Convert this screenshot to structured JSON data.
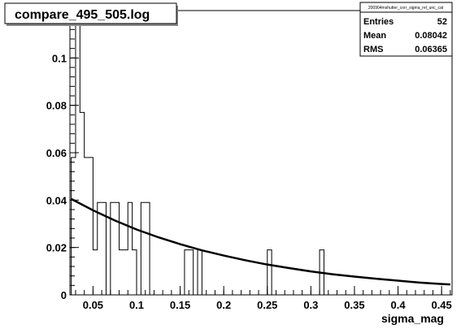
{
  "chart_data": {
    "type": "bar",
    "title": "compare_495_505.log",
    "xlabel": "sigma_mag",
    "ylabel": "",
    "xlim": [
      0.0235,
      0.462
    ],
    "ylim": [
      0,
      0.12
    ],
    "x_ticks": [
      "0.05",
      "0.1",
      "0.15",
      "0.2",
      "0.25",
      "0.3",
      "0.35",
      "0.4",
      "0.45"
    ],
    "y_ticks": [
      "0",
      "0.02",
      "0.04",
      "0.06",
      "0.08",
      "0.1"
    ],
    "histogram": {
      "name": "htemp",
      "bin_width": 0.005,
      "bin_edges_start": [
        0.025,
        0.03,
        0.035,
        0.04,
        0.045,
        0.05,
        0.055,
        0.06,
        0.065,
        0.07,
        0.075,
        0.08,
        0.085,
        0.09,
        0.095,
        0.1,
        0.105,
        0.11,
        0.115,
        0.12,
        0.125,
        0.13,
        0.135,
        0.14,
        0.145,
        0.15,
        0.155,
        0.16,
        0.165,
        0.17,
        0.175,
        0.18,
        0.185,
        0.19,
        0.195,
        0.2,
        0.205,
        0.21,
        0.215,
        0.22,
        0.225,
        0.23,
        0.235,
        0.24,
        0.245,
        0.25,
        0.255,
        0.26,
        0.265,
        0.27,
        0.275,
        0.28,
        0.285,
        0.29,
        0.295,
        0.3,
        0.305,
        0.31,
        0.315,
        0.32,
        0.325,
        0.33
      ],
      "values": [
        0.058,
        0.115,
        0.077,
        0.058,
        0.058,
        0.019,
        0.039,
        0.039,
        0.0,
        0.039,
        0.039,
        0.019,
        0.019,
        0.039,
        0.019,
        0.0,
        0.039,
        0.039,
        0.0,
        0.0,
        0.0,
        0.0,
        0.0,
        0.0,
        0.0,
        0.0,
        0.019,
        0.019,
        0.0,
        0.019,
        0.0,
        0.0,
        0.0,
        0.0,
        0.0,
        0.0,
        0.0,
        0.0,
        0.0,
        0.0,
        0.0,
        0.0,
        0.0,
        0.0,
        0.0,
        0.019,
        0.0,
        0.0,
        0.0,
        0.0,
        0.0,
        0.0,
        0.0,
        0.0,
        0.0,
        0.0,
        0.0,
        0.019,
        0.0,
        0.0,
        0.0,
        0.0
      ]
    },
    "fit": {
      "function": "exponential",
      "points_x": [
        0.025,
        0.05,
        0.075,
        0.1,
        0.125,
        0.15,
        0.175,
        0.2,
        0.225,
        0.25,
        0.275,
        0.3,
        0.325,
        0.35,
        0.375,
        0.4,
        0.425,
        0.45,
        0.46
      ],
      "points_y": [
        0.0405,
        0.0357,
        0.0314,
        0.0276,
        0.0243,
        0.0214,
        0.0188,
        0.0166,
        0.0146,
        0.0128,
        0.0113,
        0.0099,
        0.0087,
        0.0077,
        0.0068,
        0.006,
        0.0052,
        0.0046,
        0.0044
      ]
    },
    "stats_box": {
      "name": "200904mshutter_corr_sigma_rel_unc_cat",
      "rows": [
        {
          "label": "Entries",
          "value": "52"
        },
        {
          "label": "Mean",
          "value": "0.08042"
        },
        {
          "label": "RMS",
          "value": "0.06365"
        }
      ]
    }
  }
}
